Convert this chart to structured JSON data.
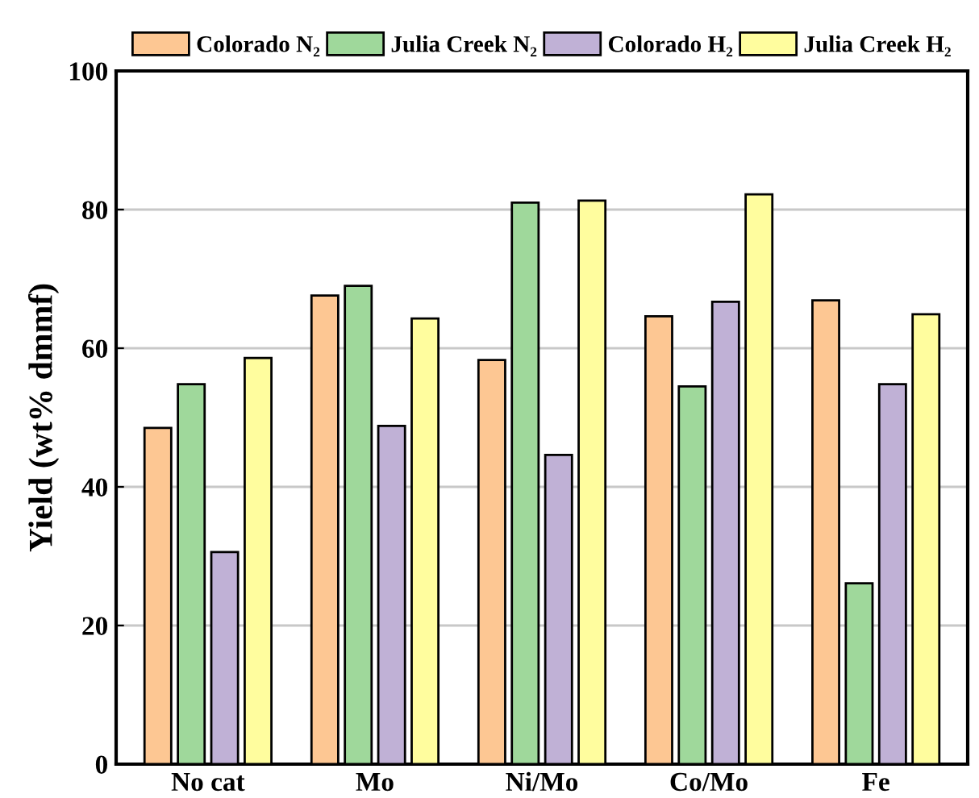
{
  "chart_data": {
    "type": "bar",
    "ylabel": "Yield (wt% dmmf)",
    "categories": [
      "No cat",
      "Mo",
      "Ni/Mo",
      "Co/Mo",
      "Fe"
    ],
    "series": [
      {
        "name": "Colorado N₂",
        "color": "#fdc793",
        "values": [
          48.5,
          67.6,
          58.3,
          64.6,
          66.9
        ]
      },
      {
        "name": "Julia Creek N₂",
        "color": "#9fd89b",
        "values": [
          54.8,
          69.0,
          81.0,
          54.5,
          26.1
        ]
      },
      {
        "name": "Colorado H₂",
        "color": "#c0b1d6",
        "values": [
          30.6,
          48.8,
          44.6,
          66.7,
          54.8
        ]
      },
      {
        "name": "Julia Creek H₂",
        "color": "#fffd9e",
        "values": [
          58.6,
          64.3,
          81.3,
          82.2,
          64.9
        ]
      }
    ],
    "ylim": [
      0,
      100
    ],
    "yticks": [
      0,
      20,
      40,
      60,
      80,
      100
    ],
    "grid": "y",
    "legend": "top"
  }
}
